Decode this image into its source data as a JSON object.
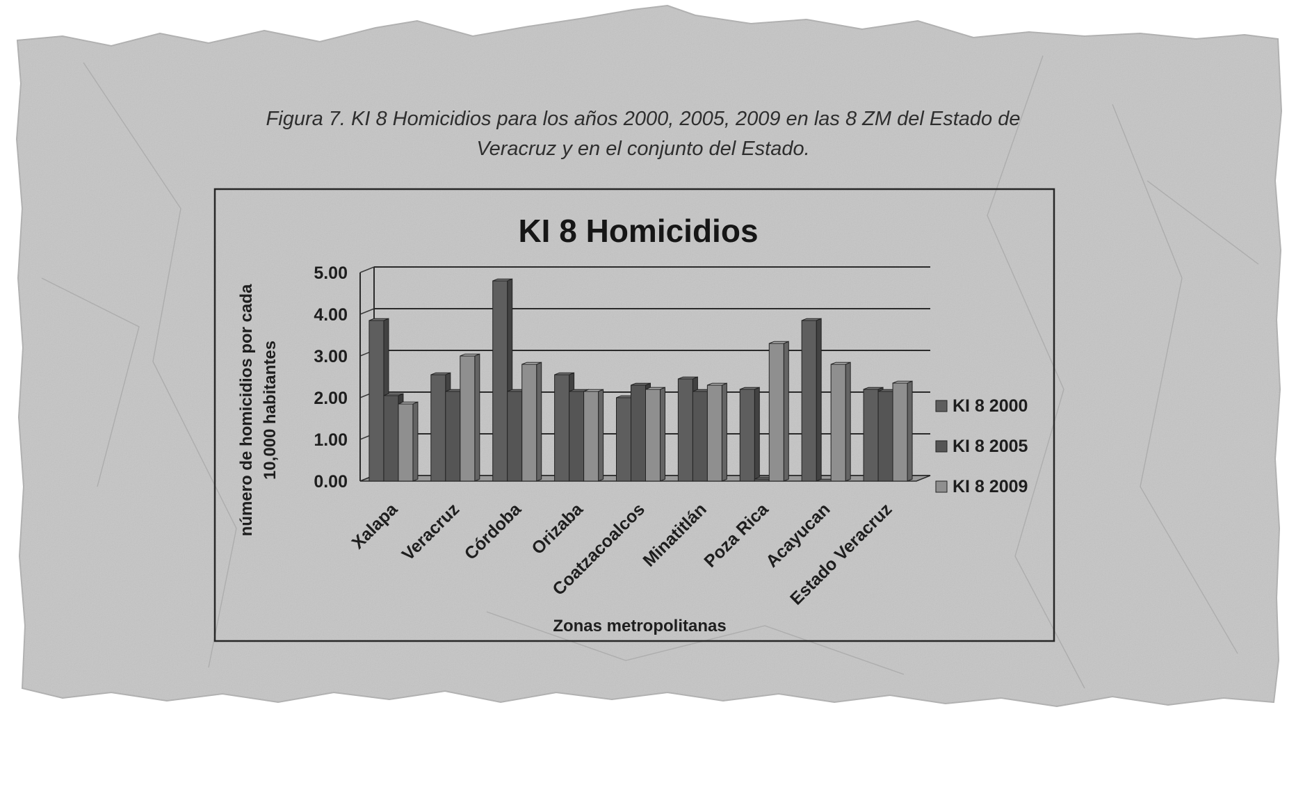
{
  "caption": {
    "line1": "Figura 7. KI 8 Homicidios para los años 2000, 2005, 2009 en las 8 ZM del Estado de",
    "line2": "Veracruz y en el conjunto del Estado."
  },
  "colors": {
    "paper": "#c4c4c4",
    "series": [
      "#5e5e5e",
      "#555555",
      "#8f8f8f"
    ],
    "text": "#1e1e1e"
  },
  "chart_data": {
    "type": "bar",
    "title": "KI 8 Homicidios",
    "xlabel": "Zonas metropolitanas",
    "ylabel_lines": [
      "número de homicidios por cada",
      "10,000 habitantes"
    ],
    "ylim": [
      0,
      5
    ],
    "yticks": [
      "0.00",
      "1.00",
      "2.00",
      "3.00",
      "4.00",
      "5.00"
    ],
    "grid": true,
    "legend_position": "right",
    "categories": [
      "Xalapa",
      "Veracruz",
      "Córdoba",
      "Orizaba",
      "Coatzacoalcos",
      "Minatitlán",
      "Poza Rica",
      "Acayucan",
      "Estado Veracruz"
    ],
    "series": [
      {
        "name": "KI 8 2000",
        "values": [
          3.85,
          2.55,
          4.8,
          2.55,
          2.0,
          2.45,
          2.2,
          3.85,
          2.2
        ]
      },
      {
        "name": "KI 8 2005",
        "values": [
          2.05,
          2.15,
          2.15,
          2.15,
          2.3,
          2.15,
          0.05,
          0.0,
          2.15
        ]
      },
      {
        "name": "KI 8 2009",
        "values": [
          1.85,
          3.0,
          2.8,
          2.15,
          2.2,
          2.3,
          3.3,
          2.8,
          2.35
        ]
      }
    ]
  }
}
